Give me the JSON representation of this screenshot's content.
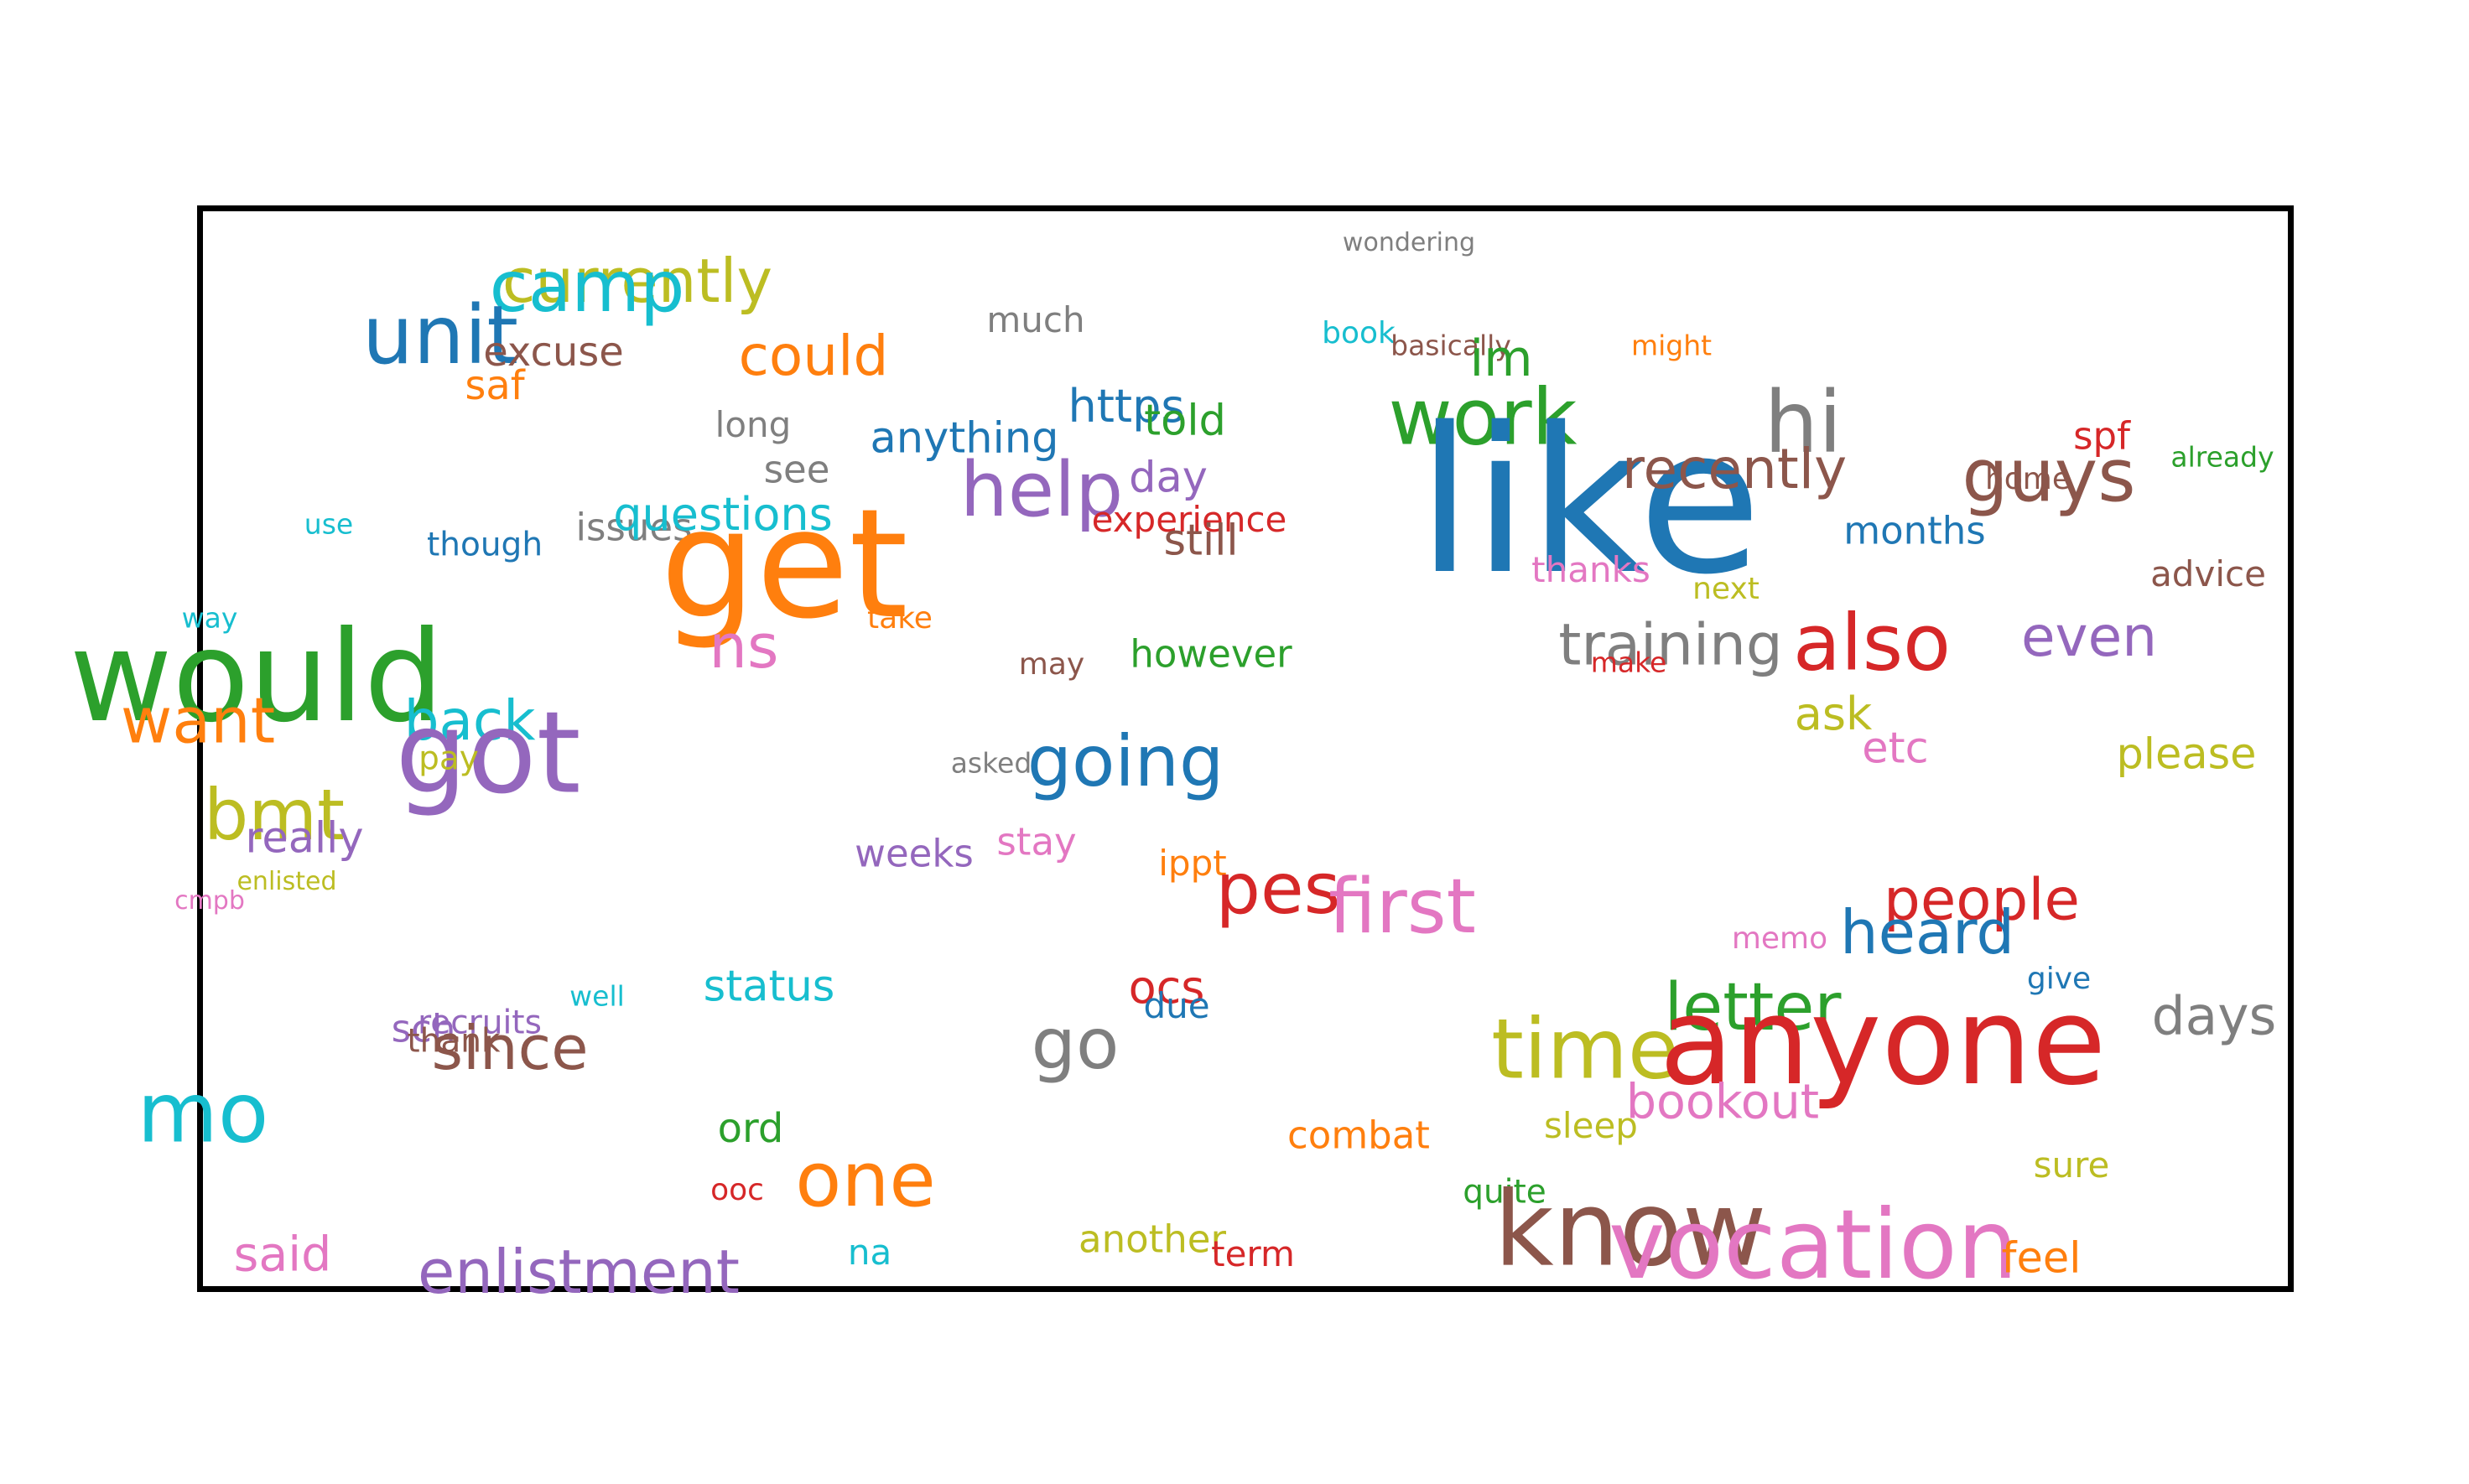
{
  "colors": {
    "blue": "#1f77b4",
    "orange": "#ff7f0e",
    "green": "#2ca02c",
    "red": "#d62728",
    "purple": "#9467bd",
    "brown": "#8c564b",
    "pink": "#e377c2",
    "gray": "#7f7f7f",
    "olive": "#bcbd22",
    "cyan": "#17becf"
  },
  "words": [
    {
      "text": "wondering",
      "color": "gray",
      "weight": 1.0
    },
    {
      "text": "currently",
      "color": "olive",
      "weight": 2.4
    },
    {
      "text": "camp",
      "color": "cyan",
      "weight": 2.8
    },
    {
      "text": "unit",
      "color": "blue",
      "weight": 3.2
    },
    {
      "text": "excuse",
      "color": "brown",
      "weight": 1.6
    },
    {
      "text": "saf",
      "color": "orange",
      "weight": 1.6
    },
    {
      "text": "much",
      "color": "gray",
      "weight": 1.4
    },
    {
      "text": "could",
      "color": "orange",
      "weight": 2.2
    },
    {
      "text": "book",
      "color": "cyan",
      "weight": 1.2
    },
    {
      "text": "basically",
      "color": "brown",
      "weight": 1.1
    },
    {
      "text": "im",
      "color": "green",
      "weight": 2.0
    },
    {
      "text": "might",
      "color": "orange",
      "weight": 1.1
    },
    {
      "text": "long",
      "color": "gray",
      "weight": 1.4
    },
    {
      "text": "anything",
      "color": "blue",
      "weight": 1.7
    },
    {
      "text": "https",
      "color": "blue",
      "weight": 1.8
    },
    {
      "text": "told",
      "color": "green",
      "weight": 1.7
    },
    {
      "text": "work",
      "color": "green",
      "weight": 3.1
    },
    {
      "text": "hi",
      "color": "gray",
      "weight": 3.4
    },
    {
      "text": "spf",
      "color": "red",
      "weight": 1.5
    },
    {
      "text": "already",
      "color": "green",
      "weight": 1.1
    },
    {
      "text": "see",
      "color": "gray",
      "weight": 1.5
    },
    {
      "text": "help",
      "color": "purple",
      "weight": 3.0
    },
    {
      "text": "day",
      "color": "purple",
      "weight": 1.7
    },
    {
      "text": "like",
      "color": "blue",
      "weight": 8.0
    },
    {
      "text": "recently",
      "color": "brown",
      "weight": 2.2
    },
    {
      "text": "guys",
      "color": "brown",
      "weight": 2.9
    },
    {
      "text": "home",
      "color": "brown",
      "weight": 1.2
    },
    {
      "text": "use",
      "color": "cyan",
      "weight": 1.1
    },
    {
      "text": "though",
      "color": "blue",
      "weight": 1.3
    },
    {
      "text": "issues",
      "color": "gray",
      "weight": 1.5
    },
    {
      "text": "questions",
      "color": "cyan",
      "weight": 1.8
    },
    {
      "text": "get",
      "color": "orange",
      "weight": 6.0
    },
    {
      "text": "experience",
      "color": "red",
      "weight": 1.4
    },
    {
      "text": "still",
      "color": "brown",
      "weight": 1.7
    },
    {
      "text": "months",
      "color": "blue",
      "weight": 1.5
    },
    {
      "text": "thanks",
      "color": "pink",
      "weight": 1.4
    },
    {
      "text": "advice",
      "color": "brown",
      "weight": 1.4
    },
    {
      "text": "next",
      "color": "olive",
      "weight": 1.2
    },
    {
      "text": "way",
      "color": "cyan",
      "weight": 1.1
    },
    {
      "text": "take",
      "color": "orange",
      "weight": 1.2
    },
    {
      "text": "ns",
      "color": "pink",
      "weight": 2.4
    },
    {
      "text": "would",
      "color": "green",
      "weight": 5.0
    },
    {
      "text": "may",
      "color": "brown",
      "weight": 1.2
    },
    {
      "text": "however",
      "color": "green",
      "weight": 1.5
    },
    {
      "text": "training",
      "color": "gray",
      "weight": 2.3
    },
    {
      "text": "make",
      "color": "red",
      "weight": 1.1
    },
    {
      "text": "also",
      "color": "red",
      "weight": 3.1
    },
    {
      "text": "even",
      "color": "purple",
      "weight": 2.2
    },
    {
      "text": "want",
      "color": "orange",
      "weight": 2.5
    },
    {
      "text": "back",
      "color": "cyan",
      "weight": 2.2
    },
    {
      "text": "got",
      "color": "purple",
      "weight": 4.5
    },
    {
      "text": "pay",
      "color": "olive",
      "weight": 1.3
    },
    {
      "text": "asked",
      "color": "gray",
      "weight": 1.1
    },
    {
      "text": "going",
      "color": "blue",
      "weight": 2.8
    },
    {
      "text": "ask",
      "color": "olive",
      "weight": 1.8
    },
    {
      "text": "etc",
      "color": "pink",
      "weight": 1.7
    },
    {
      "text": "please",
      "color": "olive",
      "weight": 1.7
    },
    {
      "text": "bmt",
      "color": "olive",
      "weight": 2.8
    },
    {
      "text": "really",
      "color": "purple",
      "weight": 1.7
    },
    {
      "text": "enlisted",
      "color": "olive",
      "weight": 1.0
    },
    {
      "text": "cmpb",
      "color": "pink",
      "weight": 1.0
    },
    {
      "text": "weeks",
      "color": "purple",
      "weight": 1.5
    },
    {
      "text": "stay",
      "color": "pink",
      "weight": 1.5
    },
    {
      "text": "ippt",
      "color": "orange",
      "weight": 1.4
    },
    {
      "text": "pes",
      "color": "red",
      "weight": 2.8
    },
    {
      "text": "first",
      "color": "pink",
      "weight": 3.0
    },
    {
      "text": "people",
      "color": "red",
      "weight": 2.3
    },
    {
      "text": "memo",
      "color": "pink",
      "weight": 1.2
    },
    {
      "text": "heard",
      "color": "blue",
      "weight": 2.4
    },
    {
      "text": "give",
      "color": "blue",
      "weight": 1.2
    },
    {
      "text": "status",
      "color": "cyan",
      "weight": 1.7
    },
    {
      "text": "ocs",
      "color": "red",
      "weight": 1.8
    },
    {
      "text": "due",
      "color": "blue",
      "weight": 1.4
    },
    {
      "text": "well",
      "color": "cyan",
      "weight": 1.1
    },
    {
      "text": "recruits",
      "color": "purple",
      "weight": 1.3
    },
    {
      "text": "sch",
      "color": "purple",
      "weight": 1.5
    },
    {
      "text": "thank",
      "color": "brown",
      "weight": 1.3
    },
    {
      "text": "since",
      "color": "brown",
      "weight": 2.4
    },
    {
      "text": "go",
      "color": "gray",
      "weight": 2.8
    },
    {
      "text": "time",
      "color": "olive",
      "weight": 3.3
    },
    {
      "text": "letter",
      "color": "green",
      "weight": 2.6
    },
    {
      "text": "anyone",
      "color": "red",
      "weight": 4.8
    },
    {
      "text": "days",
      "color": "gray",
      "weight": 2.1
    },
    {
      "text": "mo",
      "color": "cyan",
      "weight": 3.3
    },
    {
      "text": "ord",
      "color": "green",
      "weight": 1.6
    },
    {
      "text": "combat",
      "color": "orange",
      "weight": 1.5
    },
    {
      "text": "sleep",
      "color": "olive",
      "weight": 1.4
    },
    {
      "text": "bookout",
      "color": "pink",
      "weight": 1.9
    },
    {
      "text": "ooc",
      "color": "red",
      "weight": 1.2
    },
    {
      "text": "one",
      "color": "orange",
      "weight": 3.0
    },
    {
      "text": "quite",
      "color": "green",
      "weight": 1.3
    },
    {
      "text": "sure",
      "color": "olive",
      "weight": 1.4
    },
    {
      "text": "said",
      "color": "pink",
      "weight": 1.9
    },
    {
      "text": "enlistment",
      "color": "purple",
      "weight": 2.4
    },
    {
      "text": "na",
      "color": "cyan",
      "weight": 1.4
    },
    {
      "text": "another",
      "color": "olive",
      "weight": 1.5
    },
    {
      "text": "term",
      "color": "red",
      "weight": 1.4
    },
    {
      "text": "know",
      "color": "brown",
      "weight": 4.1
    },
    {
      "text": "vocation",
      "color": "pink",
      "weight": 3.8
    },
    {
      "text": "feel",
      "color": "orange",
      "weight": 1.7
    }
  ]
}
